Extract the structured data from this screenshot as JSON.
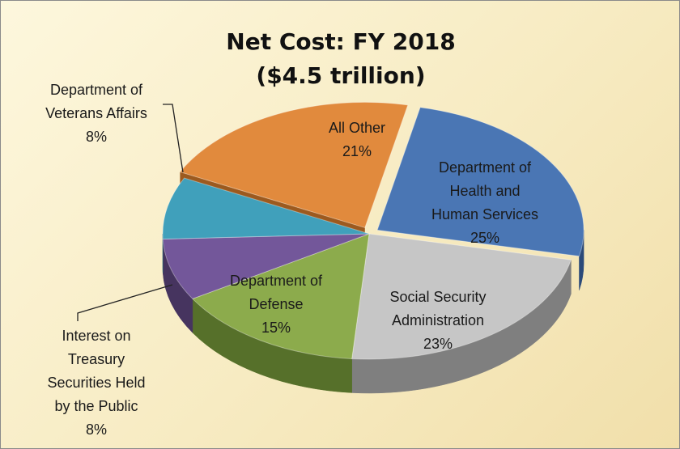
{
  "chart_data": {
    "type": "pie",
    "title": "Net Cost: FY 2018",
    "subtitle": "($4.5 trillion)",
    "slices": [
      {
        "label": "Department of Health and Human Services",
        "value": 25,
        "value_label": "25%",
        "color": "#4a76b4",
        "side": "#2b4a79",
        "label_lines": [
          "Department of",
          "Health and",
          "Human Services"
        ],
        "exploded": true
      },
      {
        "label": "Social Security Administration",
        "value": 23,
        "value_label": "23%",
        "color": "#c6c6c6",
        "side": "#7f7f7f",
        "label_lines": [
          "Social Security",
          "Administration"
        ],
        "exploded": false
      },
      {
        "label": "Department of Defense",
        "value": 15,
        "value_label": "15%",
        "color": "#8cab4c",
        "side": "#56702a",
        "label_lines": [
          "Department of",
          "Defense"
        ],
        "exploded": false
      },
      {
        "label": "Interest on Treasury Securities Held by the Public",
        "value": 8,
        "value_label": "8%",
        "color": "#73579a",
        "side": "#46345f",
        "label_lines": [
          "Interest on",
          "Treasury",
          "Securities Held",
          "by the Public"
        ],
        "exploded": false
      },
      {
        "label": "Department of Veterans Affairs",
        "value": 8,
        "value_label": "8%",
        "color": "#40a0bb",
        "side": "#256678",
        "label_lines": [
          "Department of",
          "Veterans Affairs"
        ],
        "exploded": false
      },
      {
        "label": "All Other",
        "value": 21,
        "value_label": "21%",
        "color": "#e18a3d",
        "side": "#9c5a1f",
        "label_lines": [
          "All Other"
        ],
        "exploded": true
      }
    ],
    "legend": "none",
    "style": "3d exploded pie"
  }
}
